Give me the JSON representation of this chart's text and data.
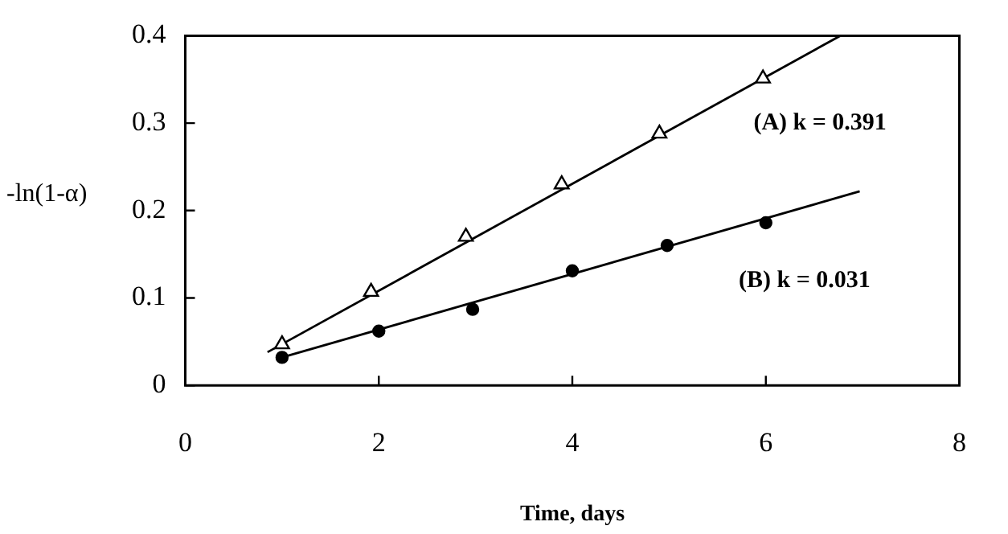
{
  "chart_data": {
    "type": "scatter",
    "xlabel": "Time, days",
    "ylabel": "-ln(1-α)",
    "xlim": [
      0,
      8
    ],
    "xticks": [
      0,
      2,
      4,
      6,
      8
    ],
    "ylim": [
      0,
      0.4
    ],
    "yticks": [
      0,
      0.1,
      0.2,
      0.3,
      0.4
    ],
    "grid": false,
    "legend": false,
    "series": [
      {
        "marker": "triangle",
        "color": "#000000",
        "x": [
          1,
          1.92,
          2.9,
          3.89,
          4.9,
          5.97
        ],
        "values": [
          0.047,
          0.107,
          0.17,
          0.23,
          0.288,
          0.351
        ]
      },
      {
        "marker": "circle",
        "color": "#000000",
        "x": [
          1,
          2,
          2.97,
          4,
          4.98,
          6
        ],
        "values": [
          0.032,
          0.062,
          0.087,
          0.131,
          0.16,
          0.186
        ]
      },
      {
        "type": "line",
        "marker": "none",
        "color": "#000000",
        "x": [
          0.85,
          6.77
        ],
        "values": [
          0.038,
          0.4
        ]
      },
      {
        "type": "line",
        "marker": "none",
        "color": "#000000",
        "x": [
          1,
          6.97
        ],
        "values": [
          0.032,
          0.222
        ]
      }
    ],
    "annotations": [
      "(A) k = 0.391",
      "(B) k = 0.031"
    ]
  }
}
